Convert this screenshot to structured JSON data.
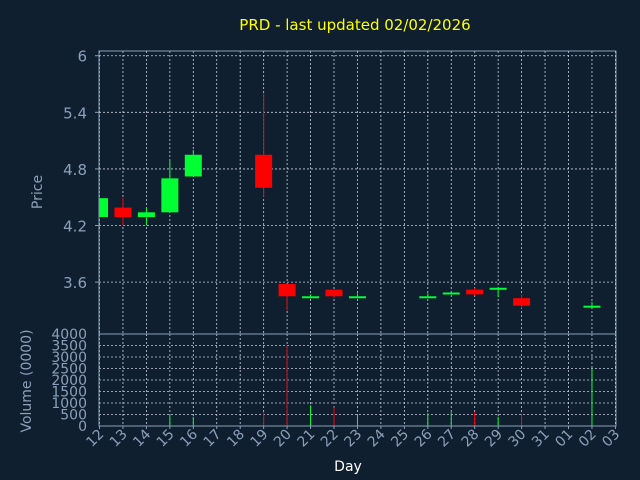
{
  "chart_data": {
    "type": "candlestick",
    "title": "PRD - last updated 02/02/2026",
    "xlabel": "Day",
    "price_ylabel": "Price",
    "volume_ylabel": "Volume (0000)",
    "price_ylim": [
      3.05,
      6.05
    ],
    "price_ticks": [
      "6",
      "5.4",
      "4.8",
      "4.2",
      "3.6"
    ],
    "volume_ylim": [
      0,
      4000
    ],
    "volume_ticks": [
      "4000",
      "3500",
      "3000",
      "2500",
      "2000",
      "1500",
      "1000",
      "500",
      "0"
    ],
    "x_ticks": [
      "12",
      "13",
      "14",
      "15",
      "16",
      "17",
      "18",
      "19",
      "20",
      "21",
      "22",
      "23",
      "24",
      "25",
      "26",
      "27",
      "28",
      "29",
      "30",
      "31",
      "01",
      "02",
      "03"
    ],
    "grid": true,
    "colors": {
      "background": "#0f1f30",
      "up": "#00ff33",
      "down": "#ff0000",
      "grid": "#c8d0dc",
      "axis": "#8aa0b8",
      "title": "#ffff00",
      "tick_label": "#8aa0b8"
    },
    "candles": [
      {
        "x": "12",
        "open": 4.29,
        "high": 4.49,
        "low": 4.29,
        "close": 4.49
      },
      {
        "x": "13",
        "open": 4.39,
        "high": 4.49,
        "low": 4.2,
        "close": 4.29
      },
      {
        "x": "14",
        "open": 4.29,
        "high": 4.39,
        "low": 4.2,
        "close": 4.34
      },
      {
        "x": "15",
        "open": 4.34,
        "high": 4.89,
        "low": 4.34,
        "close": 4.7
      },
      {
        "x": "16",
        "open": 4.72,
        "high": 5.0,
        "low": 4.72,
        "close": 4.95
      },
      {
        "x": "19",
        "open": 4.95,
        "high": 5.6,
        "low": 4.5,
        "close": 4.6
      },
      {
        "x": "20",
        "open": 3.58,
        "high": 3.58,
        "low": 3.3,
        "close": 3.45
      },
      {
        "x": "21",
        "open": 3.45,
        "high": 3.47,
        "low": 3.43,
        "close": 3.45
      },
      {
        "x": "22",
        "open": 3.52,
        "high": 3.52,
        "low": 3.43,
        "close": 3.45
      },
      {
        "x": "23",
        "open": 3.44,
        "high": 3.48,
        "low": 3.44,
        "close": 3.45
      },
      {
        "x": "26",
        "open": 3.45,
        "high": 3.48,
        "low": 3.43,
        "close": 3.45
      },
      {
        "x": "27",
        "open": 3.48,
        "high": 3.5,
        "low": 3.47,
        "close": 3.49
      },
      {
        "x": "28",
        "open": 3.52,
        "high": 3.54,
        "low": 3.46,
        "close": 3.47
      },
      {
        "x": "29",
        "open": 3.52,
        "high": 3.55,
        "low": 3.44,
        "close": 3.54
      },
      {
        "x": "30",
        "open": 3.43,
        "high": 3.47,
        "low": 3.32,
        "close": 3.35
      },
      {
        "x": "02",
        "open": 3.34,
        "high": 3.39,
        "low": 3.32,
        "close": 3.35
      }
    ],
    "volume": [
      {
        "x": "12",
        "value": 0,
        "up": true
      },
      {
        "x": "13",
        "value": 0,
        "up": false
      },
      {
        "x": "14",
        "value": 0,
        "up": true
      },
      {
        "x": "15",
        "value": 500,
        "up": true
      },
      {
        "x": "16",
        "value": 400,
        "up": true
      },
      {
        "x": "19",
        "value": 600,
        "up": false
      },
      {
        "x": "20",
        "value": 3500,
        "up": false
      },
      {
        "x": "21",
        "value": 900,
        "up": true
      },
      {
        "x": "22",
        "value": 800,
        "up": false
      },
      {
        "x": "23",
        "value": 500,
        "up": true
      },
      {
        "x": "26",
        "value": 550,
        "up": true
      },
      {
        "x": "27",
        "value": 600,
        "up": true
      },
      {
        "x": "28",
        "value": 600,
        "up": false
      },
      {
        "x": "29",
        "value": 400,
        "up": true
      },
      {
        "x": "30",
        "value": 550,
        "up": false
      },
      {
        "x": "02",
        "value": 2500,
        "up": true
      }
    ]
  }
}
